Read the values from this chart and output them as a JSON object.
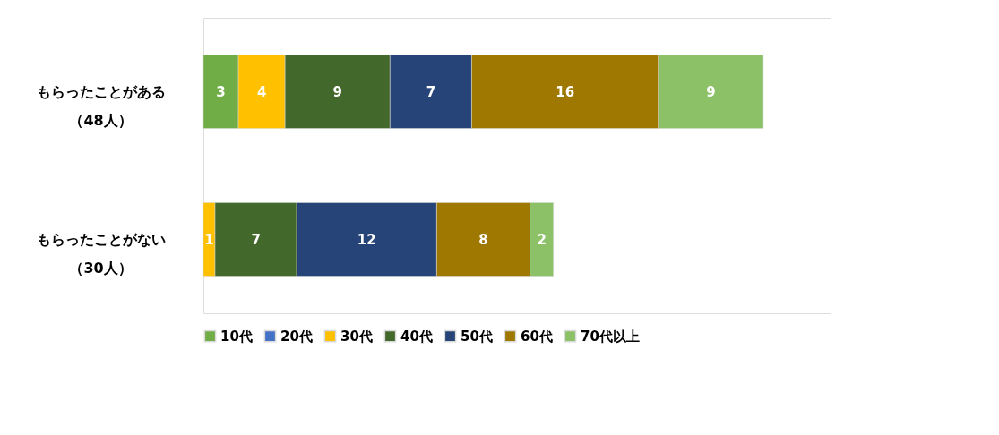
{
  "chart_data": {
    "type": "bar",
    "orientation": "horizontal",
    "stacked": true,
    "data_labels": true,
    "legend": "bottom",
    "categories": [
      "もらったことがある（48人）",
      "もらったことがない（30人）"
    ],
    "series": [
      {
        "name": "10代",
        "color": "#70ad47",
        "values": [
          3,
          null
        ]
      },
      {
        "name": "20代",
        "color": "#4472c4",
        "values": [
          null,
          null
        ]
      },
      {
        "name": "30代",
        "color": "#ffc000",
        "values": [
          4,
          1
        ]
      },
      {
        "name": "40代",
        "color": "#43682b",
        "values": [
          9,
          7
        ]
      },
      {
        "name": "50代",
        "color": "#264478",
        "values": [
          7,
          12
        ]
      },
      {
        "name": "60代",
        "color": "#9e7800",
        "values": [
          16,
          8
        ]
      },
      {
        "name": "70代以上",
        "color": "#8cc168",
        "values": [
          9,
          2
        ]
      }
    ]
  }
}
